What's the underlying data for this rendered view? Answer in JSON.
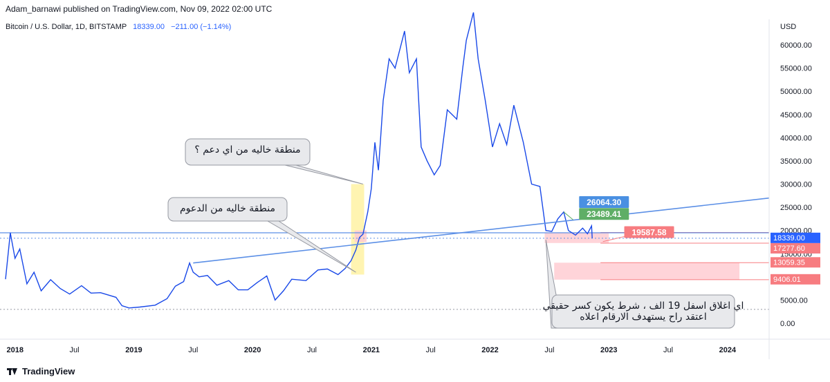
{
  "header": {
    "publisher": "Adam_barnawi published on TradingView.com, Nov 09, 2022 02:00 UTC"
  },
  "legend": {
    "symbol": "Bitcoin / U.S. Dollar, 1D, BITSTAMP",
    "price": "18339.00",
    "change": "−211.00 (−1.14%)"
  },
  "footer": {
    "brand": "TradingView"
  },
  "colors": {
    "line": "#1848e8",
    "trend": "#5b8fe6",
    "red": "#f77c80",
    "green": "#5fae66",
    "blue_label": "#4a90e2",
    "yellow": "#fff3a8",
    "pink": "#ffcdd2"
  },
  "chart_data": {
    "type": "line",
    "title": "Bitcoin / U.S. Dollar, 1D, BITSTAMP",
    "currency_label": "USD",
    "ylim": [
      0,
      67000
    ],
    "y_ticks": [
      "0.00",
      "5000.00",
      "10000.00",
      "15000.00",
      "20000.00",
      "25000.00",
      "30000.00",
      "35000.00",
      "40000.00",
      "45000.00",
      "50000.00",
      "55000.00",
      "60000.00"
    ],
    "x_ticks": [
      "2018",
      "Jul",
      "2019",
      "Jul",
      "2020",
      "Jul",
      "2021",
      "Jul",
      "2022",
      "Jul",
      "2023",
      "Jul",
      "2024"
    ],
    "x_tick_years": [
      2018.0,
      2018.5,
      2019.0,
      2019.5,
      2020.0,
      2020.5,
      2021.0,
      2021.5,
      2022.0,
      2022.5,
      2023.0,
      2023.5,
      2024.0
    ],
    "x_range": [
      2017.92,
      2024.35
    ],
    "series": [
      {
        "name": "BTCUSD",
        "points": [
          [
            2017.92,
            9500
          ],
          [
            2017.96,
            19500
          ],
          [
            2018.0,
            14000
          ],
          [
            2018.04,
            16000
          ],
          [
            2018.1,
            8500
          ],
          [
            2018.16,
            11000
          ],
          [
            2018.22,
            7000
          ],
          [
            2018.3,
            9400
          ],
          [
            2018.38,
            7500
          ],
          [
            2018.46,
            6300
          ],
          [
            2018.56,
            8100
          ],
          [
            2018.64,
            6500
          ],
          [
            2018.72,
            6600
          ],
          [
            2018.85,
            5600
          ],
          [
            2018.9,
            3800
          ],
          [
            2018.96,
            3300
          ],
          [
            2019.05,
            3500
          ],
          [
            2019.18,
            3900
          ],
          [
            2019.28,
            5300
          ],
          [
            2019.35,
            8000
          ],
          [
            2019.42,
            9000
          ],
          [
            2019.47,
            13000
          ],
          [
            2019.5,
            11000
          ],
          [
            2019.55,
            10000
          ],
          [
            2019.62,
            10300
          ],
          [
            2019.7,
            8200
          ],
          [
            2019.8,
            9200
          ],
          [
            2019.88,
            7200
          ],
          [
            2019.96,
            7200
          ],
          [
            2020.04,
            8800
          ],
          [
            2020.12,
            10200
          ],
          [
            2020.19,
            5000
          ],
          [
            2020.26,
            7000
          ],
          [
            2020.33,
            9500
          ],
          [
            2020.45,
            9200
          ],
          [
            2020.55,
            11500
          ],
          [
            2020.63,
            11700
          ],
          [
            2020.72,
            10500
          ],
          [
            2020.78,
            11800
          ],
          [
            2020.83,
            13500
          ],
          [
            2020.87,
            15800
          ],
          [
            2020.9,
            18500
          ],
          [
            2020.93,
            19200
          ],
          [
            2020.97,
            24000
          ],
          [
            2021.0,
            29000
          ],
          [
            2021.03,
            39000
          ],
          [
            2021.06,
            33000
          ],
          [
            2021.1,
            48000
          ],
          [
            2021.15,
            57000
          ],
          [
            2021.2,
            55000
          ],
          [
            2021.28,
            63000
          ],
          [
            2021.32,
            54000
          ],
          [
            2021.38,
            57000
          ],
          [
            2021.42,
            38000
          ],
          [
            2021.47,
            35000
          ],
          [
            2021.53,
            32000
          ],
          [
            2021.58,
            34000
          ],
          [
            2021.64,
            46000
          ],
          [
            2021.72,
            44000
          ],
          [
            2021.77,
            55000
          ],
          [
            2021.8,
            61000
          ],
          [
            2021.86,
            67000
          ],
          [
            2021.9,
            57000
          ],
          [
            2021.96,
            48000
          ],
          [
            2022.02,
            38000
          ],
          [
            2022.08,
            43000
          ],
          [
            2022.14,
            38500
          ],
          [
            2022.2,
            47000
          ],
          [
            2022.28,
            39000
          ],
          [
            2022.35,
            30000
          ],
          [
            2022.42,
            29500
          ],
          [
            2022.47,
            20000
          ],
          [
            2022.52,
            19800
          ],
          [
            2022.57,
            22500
          ],
          [
            2022.62,
            24000
          ],
          [
            2022.66,
            20000
          ],
          [
            2022.72,
            19000
          ],
          [
            2022.78,
            20500
          ],
          [
            2022.82,
            19300
          ],
          [
            2022.855,
            21000
          ],
          [
            2022.86,
            18339
          ]
        ]
      }
    ],
    "trendline": {
      "from": [
        2019.5,
        13000
      ],
      "to": [
        2024.35,
        27000
      ]
    },
    "horizontal_lines": [
      19500,
      18339,
      3000
    ],
    "price_labels": [
      {
        "text": "26064.30",
        "price": 26064.3,
        "style": "blue"
      },
      {
        "text": "23489.41",
        "price": 23489.41,
        "style": "green"
      },
      {
        "text": "19587.58",
        "price": 19587.58,
        "style": "red"
      }
    ],
    "axis_labels": [
      {
        "text": "18339.00",
        "style": "blue"
      },
      {
        "text": "21:59:40",
        "style": "blue"
      },
      {
        "text": "17277.60",
        "style": "red"
      },
      {
        "text": "13059.35",
        "style": "red"
      },
      {
        "text": "9406.01",
        "style": "red"
      }
    ],
    "zones": [
      {
        "name": "support-zone",
        "x": [
          2022.46,
          2023.0
        ],
        "y": [
          17300,
          19600
        ]
      },
      {
        "name": "target-zone",
        "x": [
          2022.54,
          2024.1
        ],
        "y": [
          9406.01,
          13059.35
        ]
      }
    ],
    "annotations": [
      {
        "text": "منطقة خاليه من اي دعم ؟"
      },
      {
        "text": "منطقة خاليه من الدعوم"
      },
      {
        "text": "اي اغلاق اسفل 19 الف ، شرط يكون كسر حقيقي"
      },
      {
        "text": "اعتقد راح يستهدف الارقام اعلاه"
      }
    ]
  }
}
